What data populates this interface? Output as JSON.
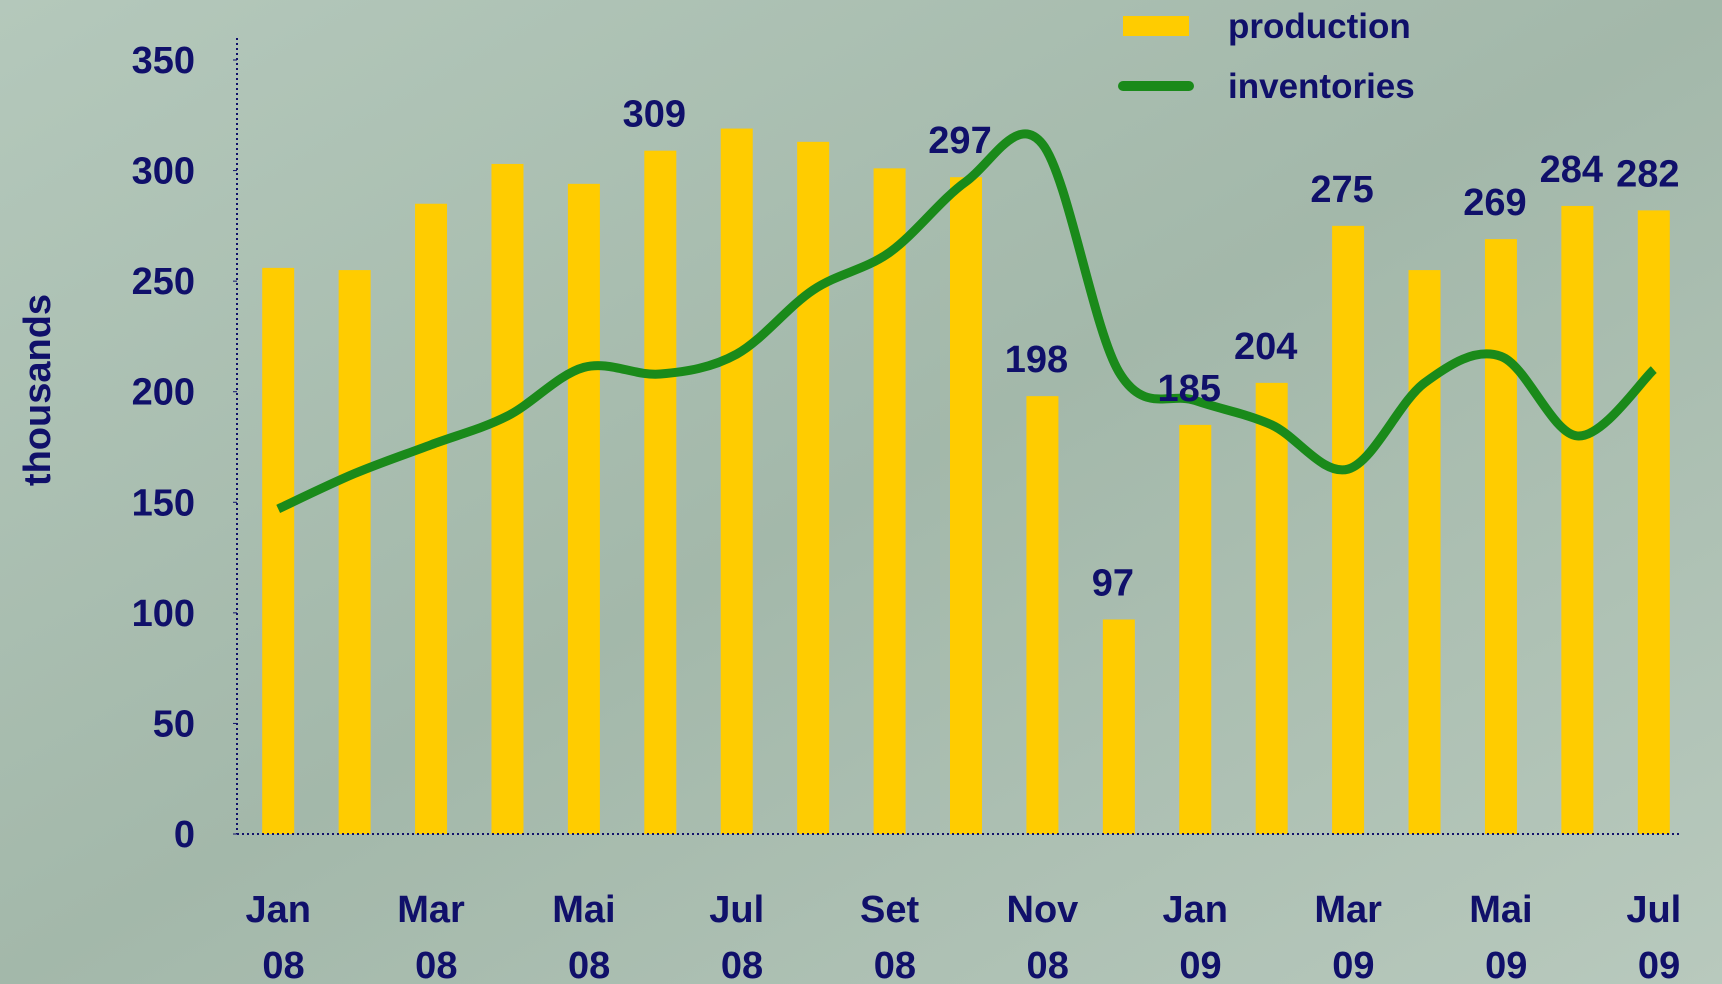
{
  "chart_data": {
    "type": "bar-line",
    "y_label": "thousands",
    "categories": [
      "Jan 08",
      null,
      "Mar 08",
      null,
      "Mai 08",
      null,
      "Jul 08",
      null,
      "Set 08",
      null,
      "Nov 08",
      null,
      "Jan 09",
      null,
      "Mar 09",
      null,
      "Mai 09",
      null,
      "Jul 09"
    ],
    "series": [
      {
        "name": "production",
        "type": "bar",
        "color": "#ffcc00",
        "values": [
          256,
          255,
          285,
          303,
          294,
          309,
          319,
          313,
          301,
          297,
          198,
          97,
          185,
          204,
          275,
          255,
          269,
          284,
          282
        ],
        "value_labels": [
          null,
          null,
          null,
          null,
          null,
          "309",
          null,
          null,
          null,
          "297",
          "198",
          "97",
          "185",
          "204",
          "275",
          null,
          "269",
          "284",
          "282"
        ]
      },
      {
        "name": "inventories",
        "type": "line",
        "color": "#1a8a1a",
        "values": [
          147,
          163,
          176,
          189,
          211,
          208,
          217,
          246,
          263,
          295,
          312,
          209,
          196,
          185,
          165,
          204,
          216,
          180,
          210
        ]
      }
    ],
    "ylim": [
      0,
      350
    ],
    "yticks": [
      0,
      50,
      100,
      150,
      200,
      250,
      300,
      350
    ]
  }
}
